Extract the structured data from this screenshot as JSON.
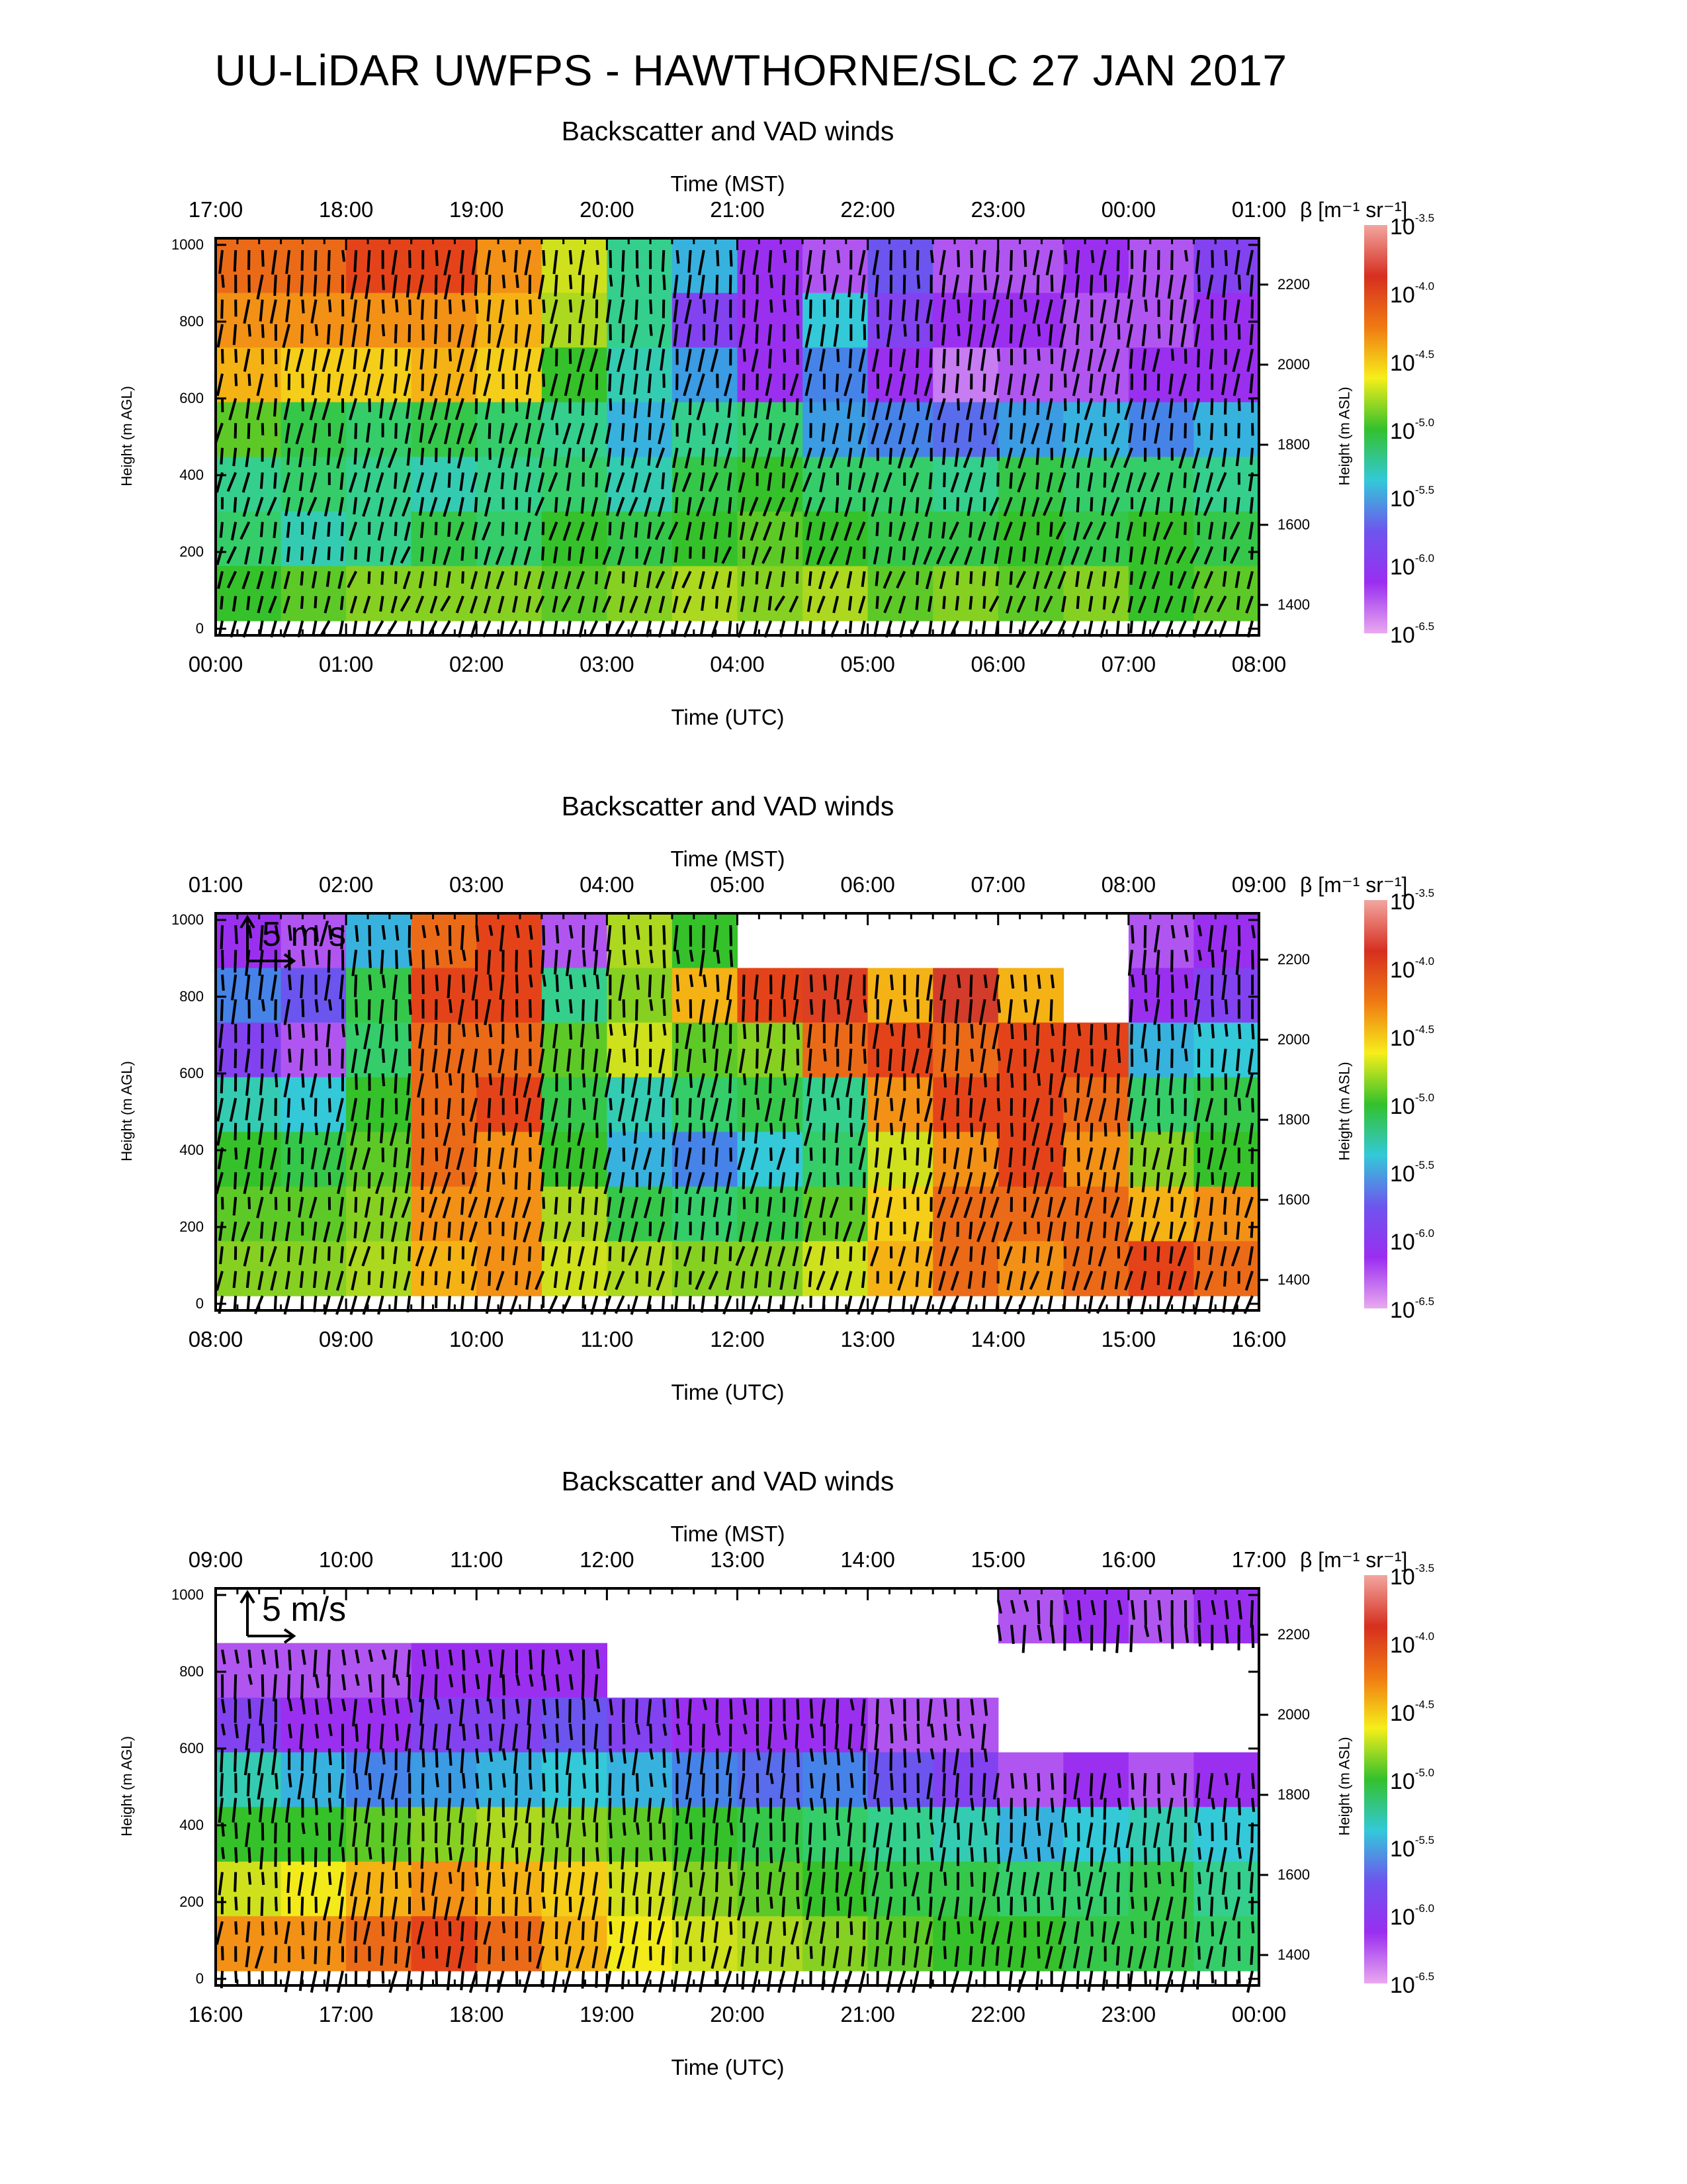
{
  "title": "UU-LiDAR UWFPS - HAWTHORNE/SLC 27 JAN 2017",
  "colorbar": {
    "label": "β [m⁻¹ sr⁻¹]",
    "ticks": [
      {
        "base": "10",
        "exp": "-3.5"
      },
      {
        "base": "10",
        "exp": "-4.0"
      },
      {
        "base": "10",
        "exp": "-4.5"
      },
      {
        "base": "10",
        "exp": "-5.0"
      },
      {
        "base": "10",
        "exp": "-5.5"
      },
      {
        "base": "10",
        "exp": "-6.0"
      },
      {
        "base": "10",
        "exp": "-6.5"
      }
    ],
    "colors": [
      "#f2a6a0",
      "#d62f1f",
      "#f07a12",
      "#f6ee1a",
      "#33c12c",
      "#33c9d8",
      "#6e55ee",
      "#9a2ef0",
      "#e9a9ef"
    ]
  },
  "arrow_color": "#000000",
  "chart_data": [
    {
      "type": "heatmap",
      "title": "Backscatter and VAD winds",
      "top_xlabel": "Time (MST)",
      "xlabel": "Time (UTC)",
      "ylabel": "Height (m AGL)",
      "y2label": "Height (m ASL)",
      "mst_ticks": [
        "17:00",
        "18:00",
        "19:00",
        "20:00",
        "21:00",
        "22:00",
        "23:00",
        "00:00",
        "01:00"
      ],
      "utc_ticks": [
        "00:00",
        "01:00",
        "02:00",
        "03:00",
        "04:00",
        "05:00",
        "06:00",
        "07:00",
        "08:00"
      ],
      "yticks": [
        "1000",
        "800",
        "600",
        "400",
        "200",
        "0"
      ],
      "y2ticks": [
        "2200",
        "2000",
        "1800",
        "1600",
        "1400"
      ],
      "ylim": [
        0,
        1000
      ],
      "y2lim": [
        1322,
        2322
      ],
      "scale_arrow_label": "",
      "log10_backscatter_grid": [
        [
          -4.1,
          -4.1,
          -4.0,
          -4.0,
          -4.2,
          -4.6,
          -5.3,
          -5.6,
          -6.2,
          -6.3,
          -6.0,
          -6.3,
          -6.3,
          -6.2,
          -6.3,
          -6.1
        ],
        [
          -4.2,
          -4.2,
          -4.2,
          -4.2,
          -4.3,
          -4.7,
          -5.3,
          -6.1,
          -6.2,
          -5.5,
          -6.1,
          -6.2,
          -6.2,
          -6.3,
          -6.3,
          -6.2
        ],
        [
          -4.3,
          -4.4,
          -4.4,
          -4.3,
          -4.4,
          -5.0,
          -5.4,
          -5.7,
          -6.2,
          -5.8,
          -6.2,
          -6.4,
          -6.3,
          -6.3,
          -6.2,
          -6.2
        ],
        [
          -4.9,
          -5.1,
          -5.2,
          -5.1,
          -5.2,
          -5.3,
          -5.6,
          -5.3,
          -5.2,
          -5.7,
          -5.8,
          -5.9,
          -5.7,
          -5.6,
          -5.8,
          -5.6
        ],
        [
          -5.3,
          -5.2,
          -5.3,
          -5.4,
          -5.3,
          -5.2,
          -5.4,
          -5.1,
          -5.0,
          -5.2,
          -5.2,
          -5.3,
          -5.1,
          -5.2,
          -5.2,
          -5.3
        ],
        [
          -5.2,
          -5.4,
          -5.3,
          -5.1,
          -5.2,
          -5.0,
          -5.1,
          -5.0,
          -4.9,
          -5.0,
          -5.1,
          -5.1,
          -5.0,
          -5.1,
          -5.0,
          -5.1
        ],
        [
          -5.0,
          -4.9,
          -4.8,
          -4.8,
          -4.8,
          -4.9,
          -4.8,
          -4.7,
          -4.8,
          -4.7,
          -4.9,
          -4.8,
          -4.9,
          -4.8,
          -5.0,
          -4.9
        ]
      ]
    },
    {
      "type": "heatmap",
      "title": "Backscatter and VAD winds",
      "top_xlabel": "Time (MST)",
      "xlabel": "Time (UTC)",
      "ylabel": "Height (m AGL)",
      "y2label": "Height (m ASL)",
      "mst_ticks": [
        "01:00",
        "02:00",
        "03:00",
        "04:00",
        "05:00",
        "06:00",
        "07:00",
        "08:00",
        "09:00"
      ],
      "utc_ticks": [
        "08:00",
        "09:00",
        "10:00",
        "11:00",
        "12:00",
        "13:00",
        "14:00",
        "15:00",
        "16:00"
      ],
      "yticks": [
        "1000",
        "800",
        "600",
        "400",
        "200",
        "0"
      ],
      "y2ticks": [
        "2200",
        "2000",
        "1800",
        "1600",
        "1400"
      ],
      "ylim": [
        0,
        1000
      ],
      "y2lim": [
        1322,
        2322
      ],
      "scale_arrow_label": "5 m/s",
      "log10_backscatter_grid": [
        [
          -6.2,
          -6.3,
          -5.6,
          -4.1,
          -4.0,
          -6.3,
          -4.7,
          -5.0,
          null,
          null,
          null,
          null,
          null,
          null,
          -6.3,
          -6.2
        ],
        [
          -5.8,
          -6.0,
          -5.1,
          -4.0,
          -4.0,
          -5.3,
          -4.8,
          -4.3,
          -4.0,
          -3.9,
          -4.3,
          -3.8,
          -4.3,
          null,
          -6.2,
          -6.1
        ],
        [
          -6.1,
          -6.3,
          -5.2,
          -4.1,
          -4.1,
          -4.9,
          -4.6,
          -4.9,
          -4.8,
          -4.1,
          -4.0,
          -4.1,
          -4.0,
          -4.0,
          -5.6,
          -5.5
        ],
        [
          -5.4,
          -5.5,
          -5.0,
          -4.1,
          -4.0,
          -5.1,
          -5.4,
          -5.2,
          -5.1,
          -5.3,
          -4.2,
          -4.0,
          -4.0,
          -4.1,
          -5.2,
          -5.1
        ],
        [
          -5.0,
          -5.1,
          -4.9,
          -4.1,
          -4.2,
          -5.0,
          -5.6,
          -5.8,
          -5.5,
          -5.2,
          -4.6,
          -4.2,
          -4.0,
          -4.2,
          -4.8,
          -5.0
        ],
        [
          -4.9,
          -4.9,
          -4.8,
          -4.2,
          -4.2,
          -4.7,
          -5.1,
          -5.2,
          -5.1,
          -4.9,
          -4.4,
          -4.1,
          -4.1,
          -4.1,
          -4.3,
          -4.2
        ],
        [
          -4.8,
          -4.8,
          -4.7,
          -4.3,
          -4.2,
          -4.6,
          -4.7,
          -4.8,
          -4.8,
          -4.6,
          -4.3,
          -4.1,
          -4.2,
          -4.1,
          -4.0,
          -4.1
        ]
      ]
    },
    {
      "type": "heatmap",
      "title": "Backscatter and VAD winds",
      "top_xlabel": "Time (MST)",
      "xlabel": "Time (UTC)",
      "ylabel": "Height (m AGL)",
      "y2label": "Height (m ASL)",
      "mst_ticks": [
        "09:00",
        "10:00",
        "11:00",
        "12:00",
        "13:00",
        "14:00",
        "15:00",
        "16:00",
        "17:00"
      ],
      "utc_ticks": [
        "16:00",
        "17:00",
        "18:00",
        "19:00",
        "20:00",
        "21:00",
        "22:00",
        "23:00",
        "00:00"
      ],
      "yticks": [
        "1000",
        "800",
        "600",
        "400",
        "200",
        "0"
      ],
      "y2ticks": [
        "2200",
        "2000",
        "1800",
        "1600",
        "1400"
      ],
      "ylim": [
        0,
        1000
      ],
      "y2lim": [
        1322,
        2322
      ],
      "scale_arrow_label": "5 m/s",
      "log10_backscatter_grid": [
        [
          null,
          null,
          null,
          null,
          null,
          null,
          null,
          null,
          null,
          null,
          null,
          null,
          -6.3,
          -6.2,
          -6.3,
          -6.2
        ],
        [
          -6.3,
          -6.3,
          -6.3,
          -6.2,
          -6.2,
          -6.2,
          null,
          null,
          null,
          null,
          null,
          null,
          null,
          null,
          null,
          null
        ],
        [
          -6.1,
          -6.2,
          -6.2,
          -6.1,
          -6.1,
          -6.0,
          -6.1,
          -6.2,
          -6.2,
          -6.2,
          -6.3,
          -6.3,
          null,
          null,
          null,
          null
        ],
        [
          -5.4,
          -5.6,
          -5.8,
          -5.7,
          -5.6,
          -5.5,
          -5.6,
          -5.8,
          -5.9,
          -5.8,
          -6.0,
          -6.1,
          -6.3,
          -6.2,
          -6.3,
          -6.2
        ],
        [
          -5.0,
          -5.0,
          -4.9,
          -4.8,
          -4.7,
          -4.8,
          -4.9,
          -5.0,
          -5.1,
          -5.2,
          -5.3,
          -5.4,
          -5.6,
          -5.5,
          -5.4,
          -5.5
        ],
        [
          -4.6,
          -4.5,
          -4.3,
          -4.2,
          -4.3,
          -4.4,
          -4.6,
          -4.8,
          -4.9,
          -5.0,
          -5.1,
          -5.1,
          -5.2,
          -5.2,
          -5.1,
          -5.3
        ],
        [
          -4.2,
          -4.2,
          -4.1,
          -4.0,
          -4.1,
          -4.3,
          -4.5,
          -4.6,
          -4.7,
          -4.8,
          -4.9,
          -5.0,
          -5.0,
          -5.1,
          -5.1,
          -5.2
        ]
      ]
    }
  ]
}
